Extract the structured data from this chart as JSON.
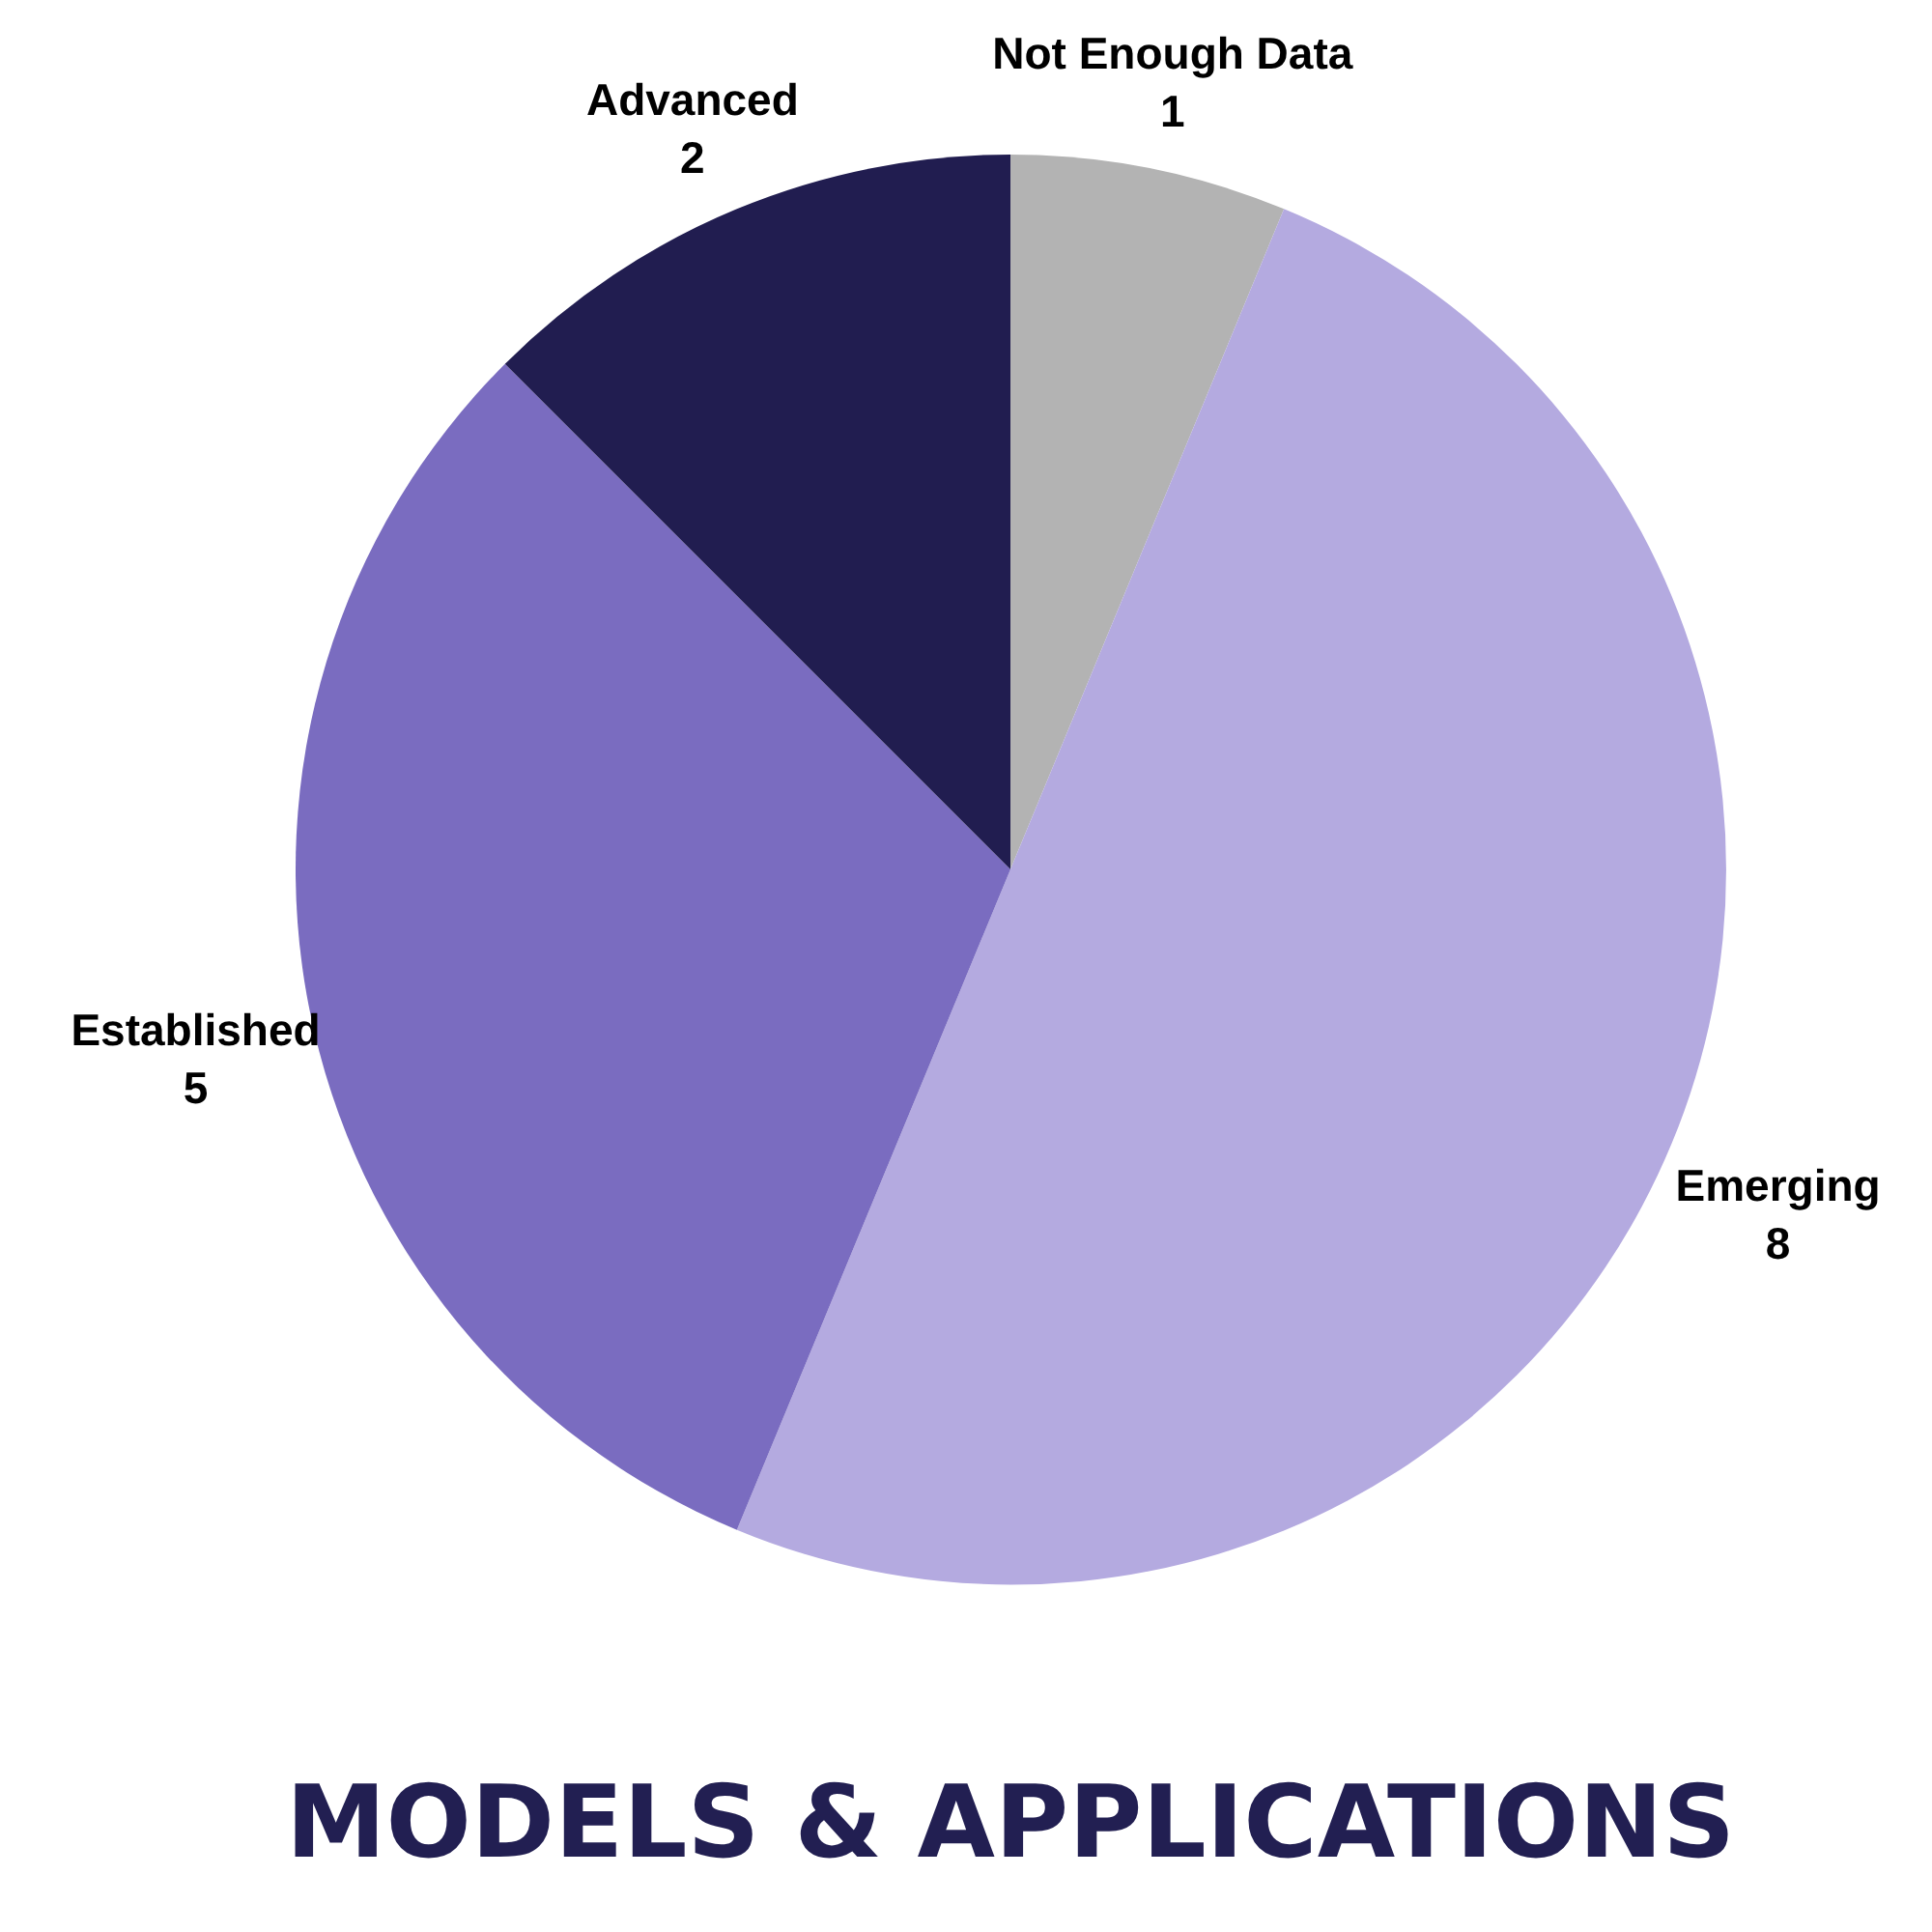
{
  "chart_data": {
    "type": "pie",
    "title": "MODELS & APPLICATIONS",
    "categories": [
      "Not Enough Data",
      "Emerging",
      "Established",
      "Advanced"
    ],
    "values": [
      1,
      8,
      5,
      2
    ],
    "colors": [
      "#b3b3b3",
      "#b4aae0",
      "#7a6cc0",
      "#211d50"
    ],
    "data_labels": true
  }
}
